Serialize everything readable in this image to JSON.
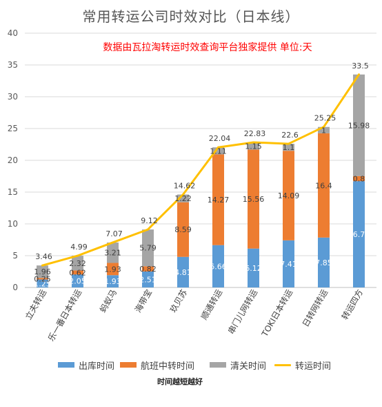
{
  "chart_data": {
    "type": "bar",
    "stacked": true,
    "title": "常用转运公司时效对比（日本线）",
    "subtitle": "数据由瓦拉淘转运时效查询平台独家提供 单位:天",
    "ylim": [
      0,
      40
    ],
    "yticks": [
      0,
      5,
      10,
      15,
      20,
      25,
      30,
      35,
      40
    ],
    "grid": true,
    "legend_position": "bottom",
    "categories": [
      "立夫转运",
      "乐一番日本转运",
      "蚂蚁马",
      "海带宝",
      "玖贝苏",
      "顺通转运",
      "串门儿网转运",
      "TOKI日本转运",
      "日转网转运",
      "转运四方"
    ],
    "series": [
      {
        "name": "出库时间",
        "kind": "bar",
        "color": "#5b9bd5",
        "values": [
          1.25,
          2.05,
          1.93,
          2.51,
          4.81,
          6.66,
          6.12,
          7.41,
          7.85,
          16.72
        ],
        "labels": [
          "1.25",
          "2.05",
          "1.93",
          "2.51",
          "4.81",
          "6.66",
          "6.12",
          "7.41",
          "7.85",
          "16.72"
        ]
      },
      {
        "name": "航班中转时间",
        "kind": "bar",
        "color": "#ed7d31",
        "values": [
          0.25,
          0.62,
          1.93,
          0.82,
          8.59,
          14.27,
          15.56,
          14.09,
          16.4,
          0.8
        ],
        "labels": [
          "0.25",
          "0.62",
          "1.93",
          "0.82",
          "8.59",
          "14.27",
          "15.56",
          "14.09",
          "16.4",
          "0.8"
        ]
      },
      {
        "name": "清关时间",
        "kind": "bar",
        "color": "#a5a5a5",
        "values": [
          1.96,
          2.32,
          3.21,
          5.79,
          1.22,
          1.11,
          1.15,
          1.1,
          1,
          15.98
        ],
        "labels": [
          "1.96",
          "2.32",
          "3.21",
          "5.79",
          "1.22",
          "1.11",
          "1.15",
          "1.1",
          "1",
          "15.98"
        ]
      },
      {
        "name": "转运时间",
        "kind": "line",
        "color": "#ffc000",
        "values": [
          3.46,
          4.99,
          7.07,
          9.12,
          14.62,
          22.04,
          22.83,
          22.6,
          25.25,
          33.5
        ],
        "labels": [
          "3.46",
          "4.99",
          "7.07",
          "9.12",
          "14.62",
          "22.04",
          "22.83",
          "22.6",
          "25.25",
          "33.5"
        ]
      }
    ],
    "note": "时间越短越好"
  }
}
